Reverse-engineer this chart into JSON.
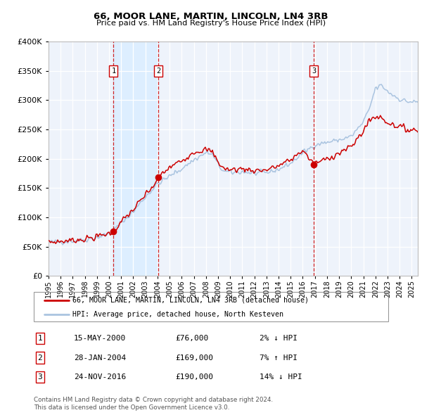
{
  "title": "66, MOOR LANE, MARTIN, LINCOLN, LN4 3RB",
  "subtitle": "Price paid vs. HM Land Registry's House Price Index (HPI)",
  "legend_line1": "66, MOOR LANE, MARTIN, LINCOLN, LN4 3RB (detached house)",
  "legend_line2": "HPI: Average price, detached house, North Kesteven",
  "footnote1": "Contains HM Land Registry data © Crown copyright and database right 2024.",
  "footnote2": "This data is licensed under the Open Government Licence v3.0.",
  "transactions": [
    {
      "num": 1,
      "date": "15-MAY-2000",
      "price": 76000,
      "hpi_diff": "2% ↓ HPI",
      "year": 2000.37
    },
    {
      "num": 2,
      "date": "28-JAN-2004",
      "price": 169000,
      "hpi_diff": "7% ↑ HPI",
      "year": 2004.08
    },
    {
      "num": 3,
      "date": "24-NOV-2016",
      "price": 190000,
      "hpi_diff": "14% ↓ HPI",
      "year": 2016.9
    }
  ],
  "hpi_color": "#aac4e0",
  "price_color": "#cc0000",
  "dot_color": "#cc0000",
  "vline_color": "#cc0000",
  "shade_color": "#ddeeff",
  "background_color": "#eef3fb",
  "ylim": [
    0,
    400000
  ],
  "xlim_start": 1995,
  "xlim_end": 2025.5,
  "yticks": [
    0,
    50000,
    100000,
    150000,
    200000,
    250000,
    300000,
    350000,
    400000
  ]
}
